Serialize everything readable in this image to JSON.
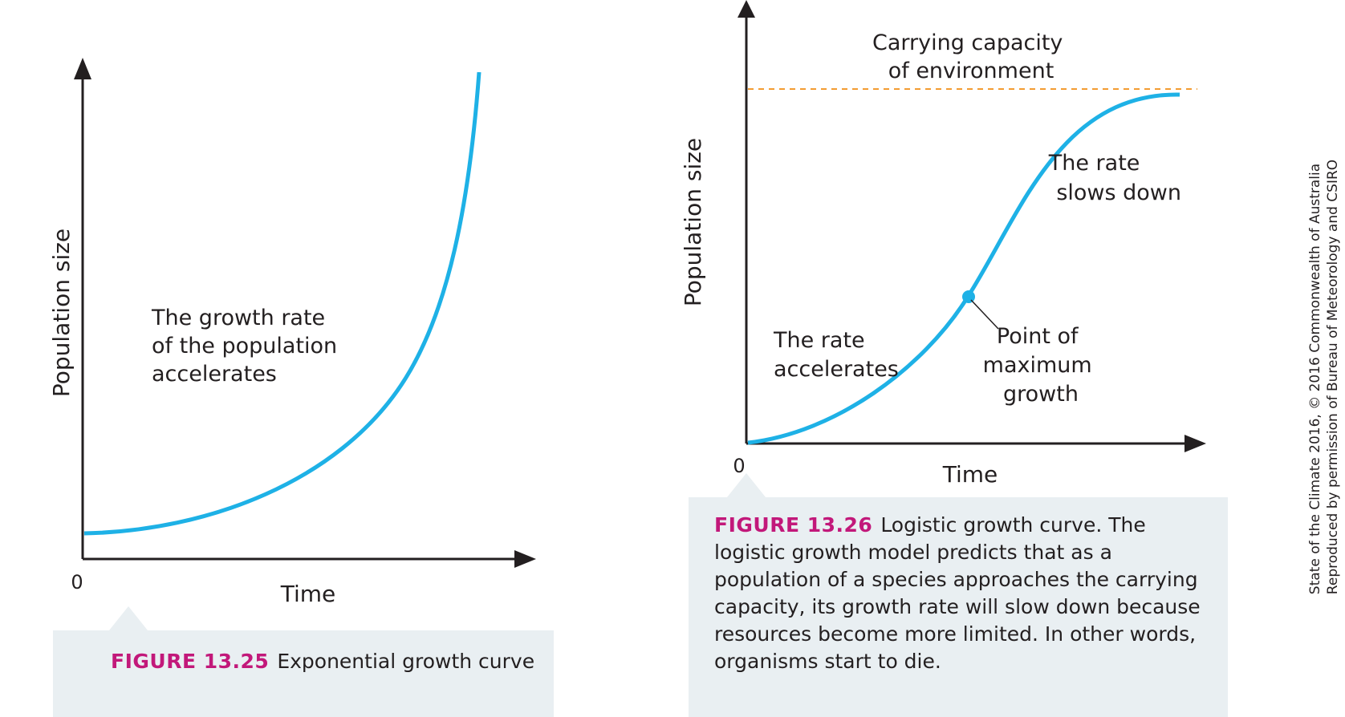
{
  "figure1": {
    "y_axis_label": "Population size",
    "x_axis_label": "Time",
    "origin_label": "0",
    "annotation": [
      "The growth rate",
      "of the population",
      "accelerates"
    ],
    "curve_color": "#1eb1e6",
    "caption": {
      "label": "FIGURE 13.25",
      "text": "Exponential growth curve"
    }
  },
  "figure2": {
    "y_axis_label": "Population size",
    "x_axis_label": "Time",
    "origin_label": "0",
    "carrying_capacity_label": [
      "Carrying capacity",
      "of environment"
    ],
    "rate_accelerates_label": [
      "The rate",
      "accelerates"
    ],
    "rate_slows_label": [
      "The rate",
      "slows down"
    ],
    "max_growth_label": [
      "Point of",
      "maximum",
      "growth"
    ],
    "curve_color": "#1eb1e6",
    "capacity_line_color": "#f39c32",
    "caption": {
      "label": "FIGURE 13.26",
      "text": "Logistic growth curve. The logistic growth model predicts that as a population of a species approaches the carrying capacity, its growth rate will slow down because resources become more limited. In other words, organisms start to die."
    }
  },
  "credit_lines": [
    "State of the Climate 2016, © 2016 Commonwealth of Australia",
    "Reproduced by permission of Bureau of Meteorology and CSIRO"
  ],
  "colors": {
    "figure_label": "#c2187a",
    "caption_background": "#e9eff2",
    "axis": "#231f20"
  }
}
